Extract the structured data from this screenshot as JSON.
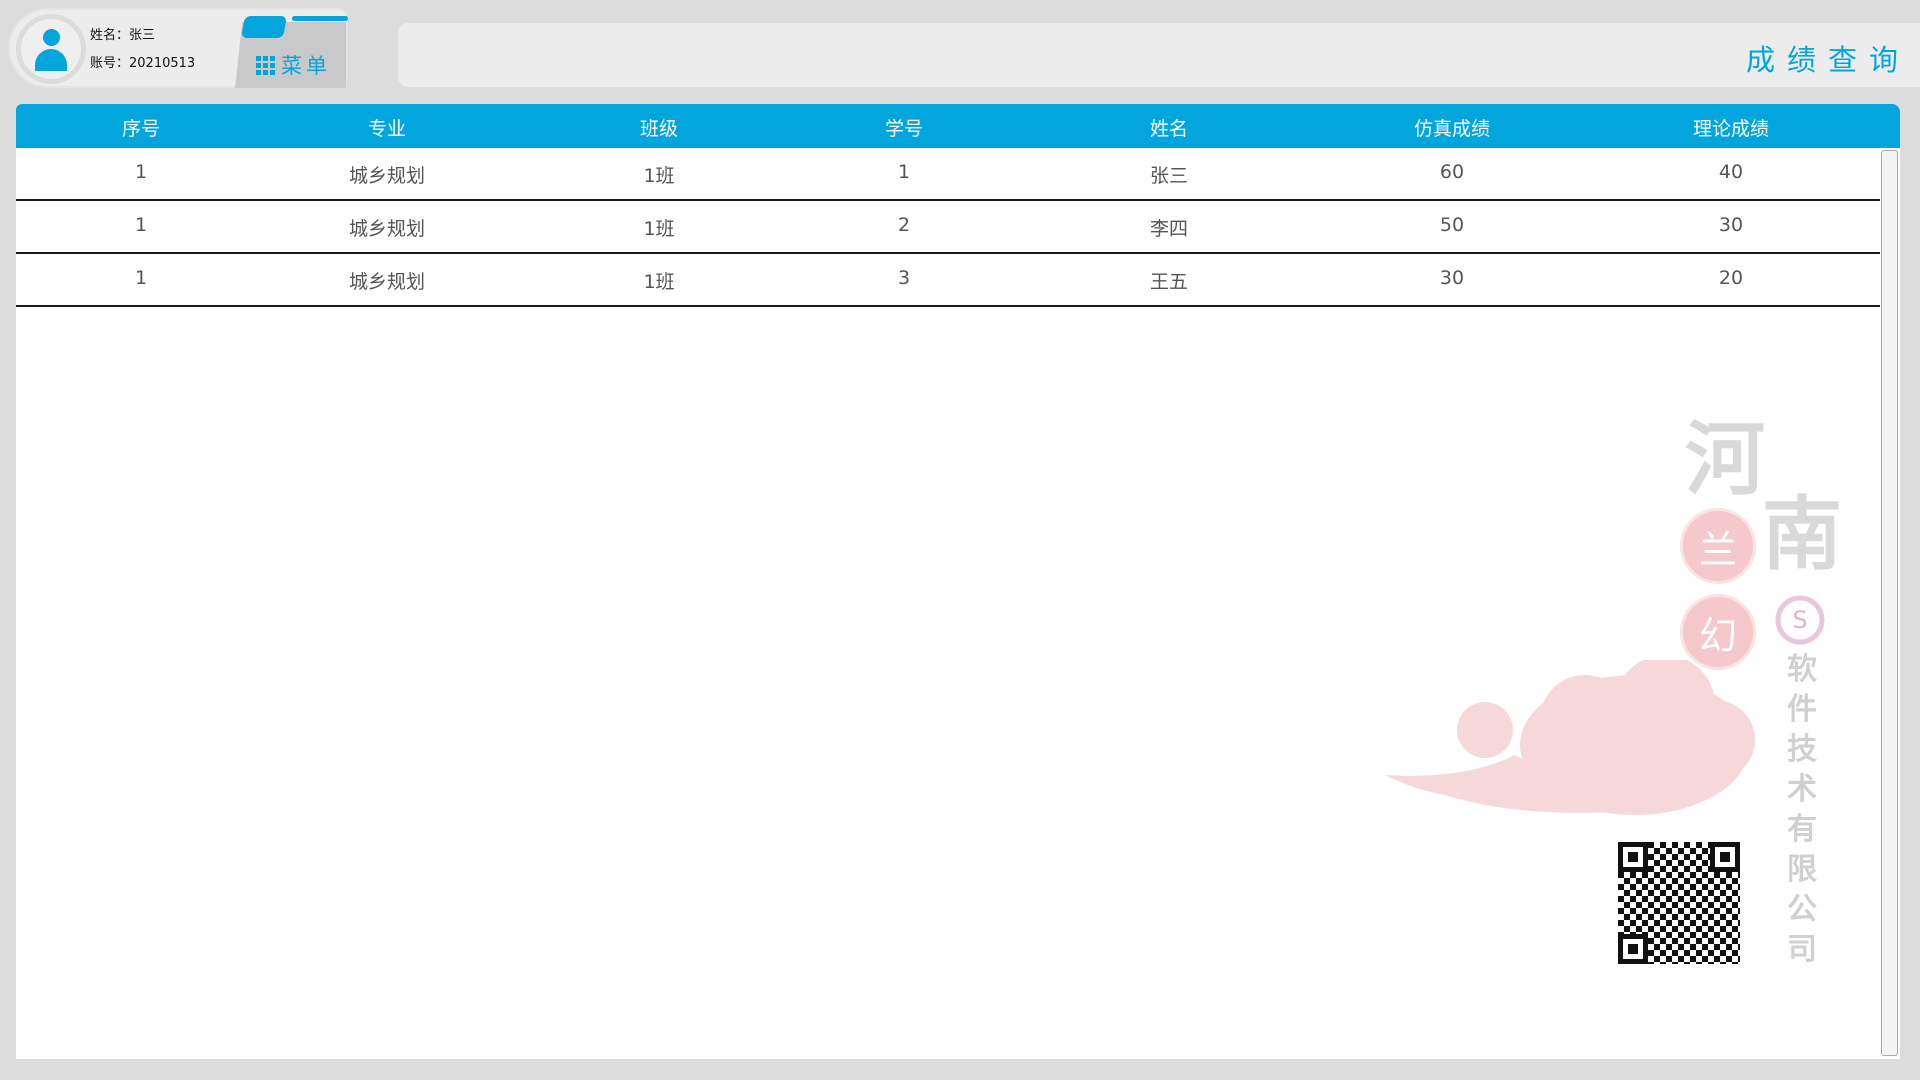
{
  "user": {
    "name_label": "姓名：",
    "name": "张三",
    "account_label": "账号：",
    "account": "20210513"
  },
  "menu": {
    "label": "菜单",
    "icon": "grid-icon"
  },
  "header": {
    "title": "成绩查询"
  },
  "table": {
    "columns": [
      "序号",
      "专业",
      "班级",
      "学号",
      "姓名",
      "仿真成绩",
      "理论成绩"
    ],
    "rows": [
      [
        "1",
        "城乡规划",
        "1班",
        "1",
        "张三",
        "60",
        "40"
      ],
      [
        "1",
        "城乡规划",
        "1班",
        "2",
        "李四",
        "50",
        "30"
      ],
      [
        "1",
        "城乡规划",
        "1班",
        "3",
        "王五",
        "30",
        "20"
      ]
    ]
  },
  "watermark": {
    "big": [
      "河",
      "南"
    ],
    "seals": [
      "兰",
      "幻"
    ],
    "company": "软件技术有限公司"
  },
  "colors": {
    "accent": "#02a5dc",
    "background": "#dcdcdc",
    "seal": "#f5c9cb"
  }
}
